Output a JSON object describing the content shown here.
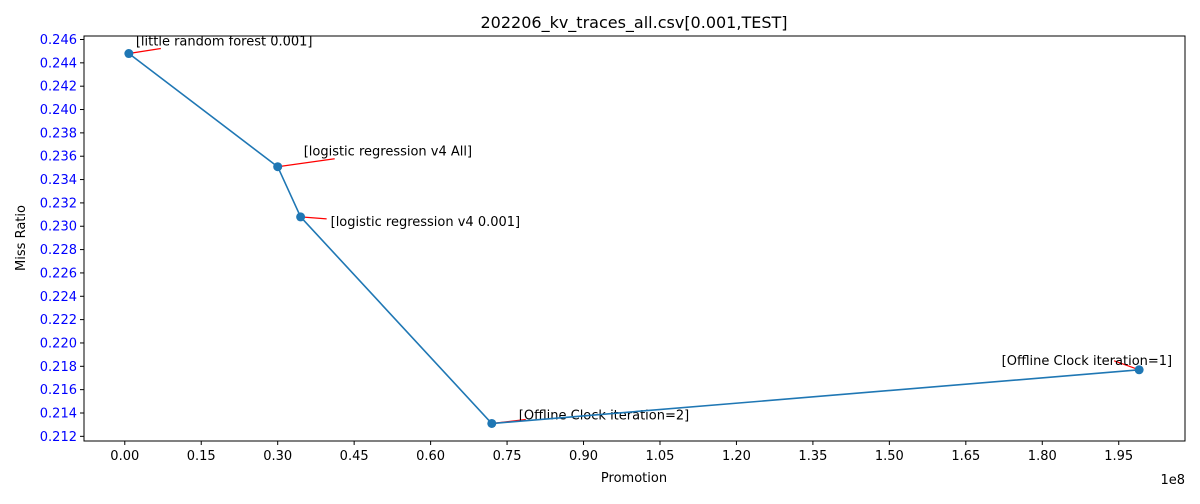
{
  "chart_data": {
    "type": "line",
    "title": "202206_kv_traces_all.csv[0.001,TEST]",
    "xlabel": "Promotion",
    "ylabel": "Miss Ratio",
    "x_offset_label": "1e8",
    "xlim": [
      -0.08,
      2.08
    ],
    "ylim": [
      0.2116,
      0.2463
    ],
    "x_ticks": [
      0.0,
      0.15,
      0.3,
      0.45,
      0.6,
      0.75,
      0.9,
      1.05,
      1.2,
      1.35,
      1.5,
      1.65,
      1.8,
      1.95
    ],
    "x_tick_labels": [
      "0.00",
      "0.15",
      "0.30",
      "0.45",
      "0.60",
      "0.75",
      "0.90",
      "1.05",
      "1.20",
      "1.35",
      "1.50",
      "1.65",
      "1.80",
      "1.95"
    ],
    "y_ticks": [
      0.212,
      0.214,
      0.216,
      0.218,
      0.22,
      0.222,
      0.224,
      0.226,
      0.228,
      0.23,
      0.232,
      0.234,
      0.236,
      0.238,
      0.24,
      0.242,
      0.244,
      0.246
    ],
    "y_tick_labels": [
      "0.212",
      "0.214",
      "0.216",
      "0.218",
      "0.220",
      "0.222",
      "0.224",
      "0.226",
      "0.228",
      "0.230",
      "0.232",
      "0.234",
      "0.236",
      "0.238",
      "0.240",
      "0.242",
      "0.244",
      "0.246"
    ],
    "series": [
      {
        "color": "#1f77b4",
        "x": [
          0.008,
          0.3,
          0.345,
          0.72,
          1.99
        ],
        "y": [
          0.2448,
          0.2351,
          0.2308,
          0.2131,
          0.2177
        ],
        "point_labels": [
          "[little random forest 0.001]",
          "[logistic regression v4 All]",
          "[logistic regression v4 0.001]",
          "[Offline Clock iteration=2]",
          "[Offline Clock iteration=1]"
        ]
      }
    ],
    "annotation_arrow_color": "#ff0000",
    "ytick_color": "#0000ff",
    "grid": false,
    "legend": "none"
  }
}
